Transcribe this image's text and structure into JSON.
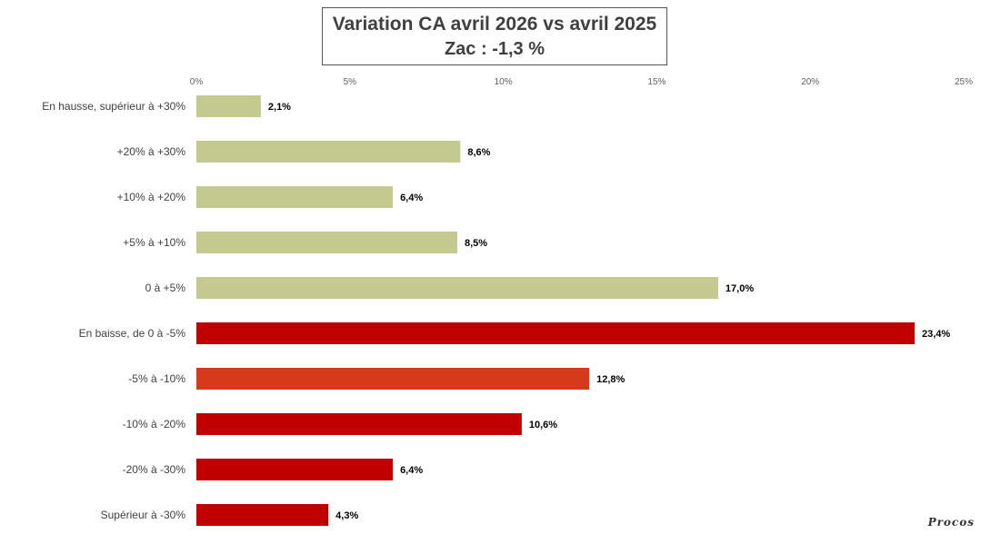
{
  "title": {
    "line1": "Variation CA avril 2026 vs avril 2025",
    "line2": "Zac : -1,3 %"
  },
  "chart_data": {
    "type": "bar",
    "orientation": "horizontal",
    "title": "Variation CA avril 2026 vs avril 2025 — Zac : -1,3 %",
    "xlim": [
      0,
      25
    ],
    "x_ticks": [
      "0%",
      "5%",
      "10%",
      "15%",
      "20%",
      "25%"
    ],
    "x_axis_position": "top",
    "grid": false,
    "categories": [
      "En hausse, supérieur à +30%",
      "+20% à +30%",
      "+10% à +20%",
      "+5% à +10%",
      "0 à +5%",
      "En baisse, de 0 à -5%",
      "-5% à -10%",
      "-10% à -20%",
      "-20% à -30%",
      "Supérieur à -30%"
    ],
    "values": [
      2.1,
      8.6,
      6.4,
      8.5,
      17.0,
      23.4,
      12.8,
      10.6,
      6.4,
      4.3
    ],
    "value_labels": [
      "2,1%",
      "8,6%",
      "6,4%",
      "8,5%",
      "17,0%",
      "23,4%",
      "12,8%",
      "10,6%",
      "6,4%",
      "4,3%"
    ],
    "colors": [
      "#c4c98f",
      "#c4c98f",
      "#c4c98f",
      "#c4c98f",
      "#c4c98f",
      "#c00000",
      "#d63a1a",
      "#c00000",
      "#c00000",
      "#c00000"
    ]
  },
  "signature": "Procos"
}
